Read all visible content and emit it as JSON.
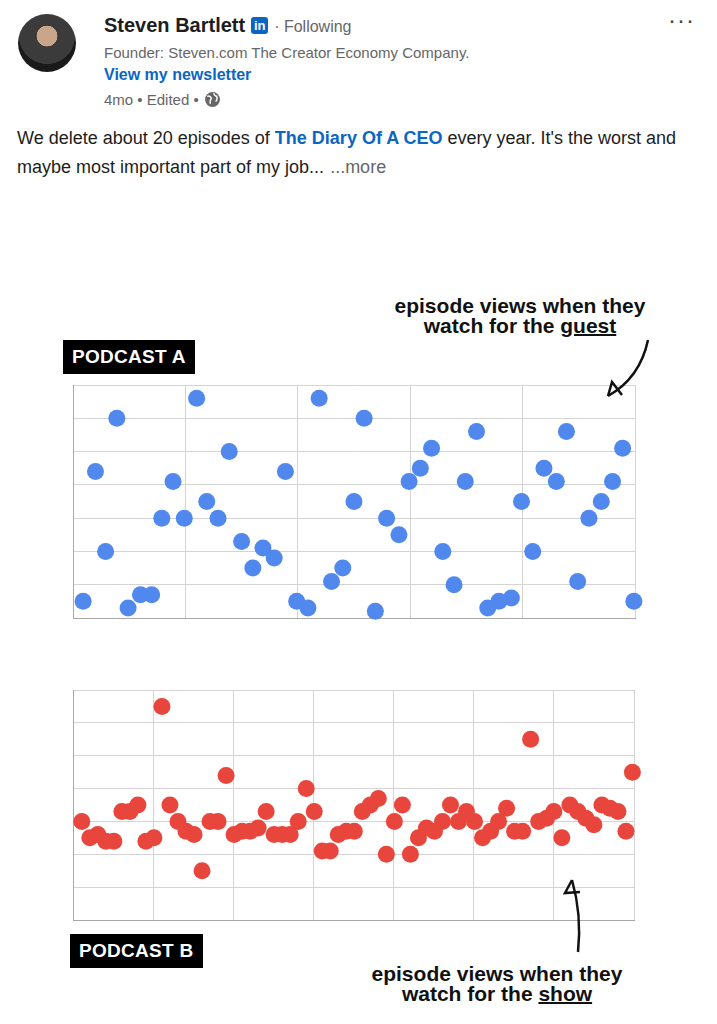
{
  "post": {
    "author": "Steven Bartlett",
    "badge": "in",
    "following": "· Following",
    "headline": "Founder: Steven.com The Creator Economy Company.",
    "newsletter": "View my newsletter",
    "meta": "4mo • Edited •",
    "menu": "···",
    "text": {
      "before": "We delete about 20 episodes of ",
      "link": "The Diary Of A CEO",
      "after": " every year. It's the worst and maybe most important part of my job...",
      "more": "...more"
    }
  },
  "chart_data": [
    {
      "type": "scatter",
      "title": "PODCAST A",
      "annotations": [
        {
          "text": "episode views when they watch for the",
          "emphasis": "guest"
        }
      ],
      "x": [
        0.09,
        0.2,
        0.29,
        0.39,
        0.49,
        0.6,
        0.7,
        0.79,
        0.89,
        0.99,
        1.1,
        1.19,
        1.29,
        1.39,
        1.5,
        1.6,
        1.69,
        1.79,
        1.89,
        1.99,
        2.09,
        2.19,
        2.3,
        2.4,
        2.5,
        2.59,
        2.69,
        2.79,
        2.9,
        2.99,
        3.09,
        3.19,
        3.29,
        3.39,
        3.49,
        3.59,
        3.69,
        3.79,
        3.9,
        3.99,
        4.09,
        4.19,
        4.3,
        4.39,
        4.49,
        4.59,
        4.7,
        4.8,
        4.89,
        4.99
      ],
      "values": [
        0.5,
        4.4,
        2.0,
        6.0,
        0.3,
        0.7,
        0.7,
        3.0,
        4.1,
        3.0,
        6.6,
        3.5,
        3.0,
        5.0,
        2.3,
        1.5,
        2.1,
        1.8,
        4.4,
        0.5,
        0.3,
        6.6,
        1.1,
        1.5,
        3.5,
        6.0,
        0.2,
        3.0,
        2.5,
        4.1,
        4.5,
        5.1,
        2.0,
        1.0,
        4.1,
        5.6,
        0.3,
        0.5,
        0.6,
        3.5,
        2.0,
        4.5,
        4.1,
        5.6,
        1.1,
        3.0,
        3.5,
        4.1,
        5.1,
        0.5
      ],
      "color": "#5088ee",
      "marker": "circle",
      "xlim": [
        0,
        5
      ],
      "ylim": [
        0,
        7
      ],
      "xticks": [
        0,
        1,
        2,
        3,
        4,
        5
      ],
      "yticks": [
        0,
        1,
        2,
        3,
        4,
        5,
        6,
        7
      ],
      "grid": true,
      "tick_labels": false
    },
    {
      "type": "scatter",
      "title": "PODCAST B",
      "annotations": [
        {
          "text": "episode views when they watch for the",
          "emphasis": "show"
        }
      ],
      "x": [
        0.11,
        0.21,
        0.31,
        0.41,
        0.51,
        0.61,
        0.71,
        0.81,
        0.91,
        1.01,
        1.11,
        1.21,
        1.31,
        1.41,
        1.51,
        1.61,
        1.71,
        1.81,
        1.91,
        2.01,
        2.11,
        2.21,
        2.31,
        2.41,
        2.51,
        2.61,
        2.71,
        2.81,
        2.91,
        3.01,
        3.11,
        3.21,
        3.31,
        3.41,
        3.51,
        3.61,
        3.71,
        3.81,
        3.91,
        4.01,
        4.11,
        4.21,
        4.31,
        4.41,
        4.51,
        4.61,
        4.71,
        4.81,
        4.91,
        5.01,
        5.11,
        5.21,
        5.31,
        5.41,
        5.51,
        5.61,
        5.71,
        5.81,
        5.91,
        6.0,
        6.1,
        6.2,
        6.3,
        6.4,
        6.5,
        6.6,
        6.7,
        6.8,
        6.9,
        6.98
      ],
      "values": [
        3.0,
        2.5,
        2.6,
        2.4,
        2.4,
        3.3,
        3.3,
        3.5,
        2.4,
        2.5,
        6.5,
        3.5,
        3.0,
        2.7,
        2.6,
        1.5,
        3.0,
        3.0,
        4.4,
        2.6,
        2.7,
        2.7,
        2.8,
        3.3,
        2.6,
        2.6,
        2.6,
        3.0,
        4.0,
        3.3,
        2.1,
        2.1,
        2.6,
        2.7,
        2.7,
        3.3,
        3.5,
        3.7,
        2.0,
        3.0,
        3.5,
        2.0,
        2.5,
        2.8,
        2.7,
        3.0,
        3.5,
        3.0,
        3.3,
        3.0,
        2.5,
        2.7,
        3.0,
        3.4,
        2.7,
        2.7,
        5.5,
        3.0,
        3.1,
        3.3,
        2.5,
        3.5,
        3.3,
        3.1,
        2.9,
        3.5,
        3.4,
        3.3,
        2.7,
        4.5
      ],
      "color": "#e8463d",
      "marker": "circle",
      "xlim": [
        0,
        7
      ],
      "ylim": [
        0,
        7
      ],
      "xticks": [
        0,
        1,
        2,
        3,
        4,
        5,
        6,
        7
      ],
      "yticks": [
        0,
        1,
        2,
        3,
        4,
        5,
        6,
        7
      ],
      "grid": true,
      "tick_labels": false
    }
  ]
}
